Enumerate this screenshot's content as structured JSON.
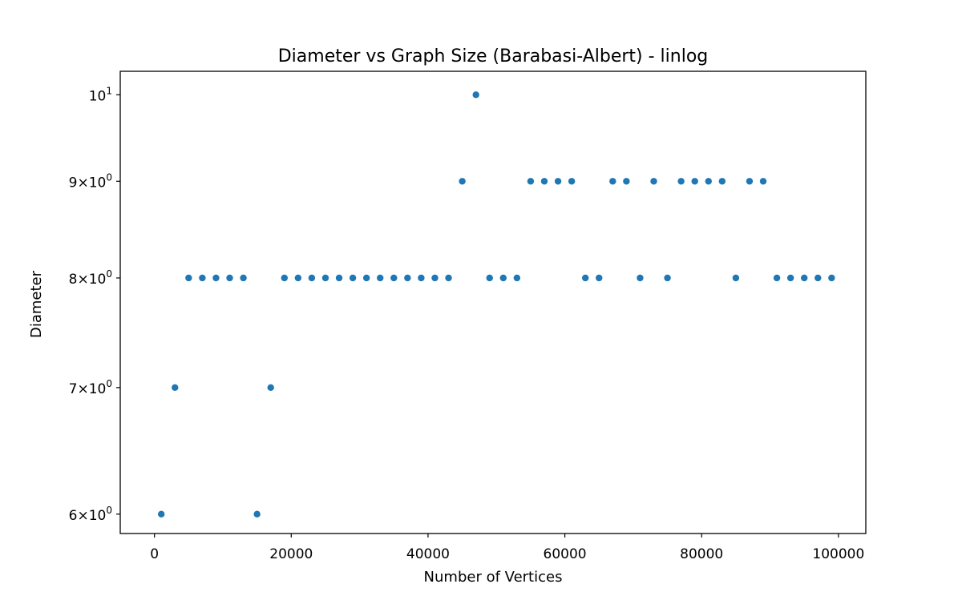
{
  "chart_data": {
    "type": "scatter",
    "title": "Diameter vs Graph Size (Barabasi-Albert) - linlog",
    "xlabel": "Number of Vertices",
    "ylabel": "Diameter",
    "yscale": "log",
    "xlim": [
      -5000,
      104000
    ],
    "ylim": [
      5.86,
      10.29
    ],
    "grid": false,
    "marker_color": "#1f77b4",
    "x_ticks": [
      {
        "value": 0,
        "label": "0"
      },
      {
        "value": 20000,
        "label": "20000"
      },
      {
        "value": 40000,
        "label": "40000"
      },
      {
        "value": 60000,
        "label": "60000"
      },
      {
        "value": 80000,
        "label": "80000"
      },
      {
        "value": 100000,
        "label": "100000"
      }
    ],
    "y_ticks": [
      {
        "value": 6,
        "mantissa": "6",
        "exp": "0"
      },
      {
        "value": 7,
        "mantissa": "7",
        "exp": "0"
      },
      {
        "value": 8,
        "mantissa": "8",
        "exp": "0"
      },
      {
        "value": 9,
        "mantissa": "9",
        "exp": "0"
      },
      {
        "value": 10,
        "mantissa": "",
        "exp": "1"
      }
    ],
    "x": [
      1000,
      3000,
      5000,
      7000,
      9000,
      11000,
      13000,
      15000,
      17000,
      19000,
      21000,
      23000,
      25000,
      27000,
      29000,
      31000,
      33000,
      35000,
      37000,
      39000,
      41000,
      43000,
      45000,
      47000,
      49000,
      51000,
      53000,
      55000,
      57000,
      59000,
      61000,
      63000,
      65000,
      67000,
      69000,
      71000,
      73000,
      75000,
      77000,
      79000,
      81000,
      83000,
      85000,
      87000,
      89000,
      91000,
      93000,
      95000,
      97000,
      99000
    ],
    "y": [
      6,
      7,
      8,
      8,
      8,
      8,
      8,
      6,
      7,
      8,
      8,
      8,
      8,
      8,
      8,
      8,
      8,
      8,
      8,
      8,
      8,
      8,
      9,
      10,
      8,
      8,
      8,
      9,
      9,
      9,
      9,
      8,
      8,
      9,
      9,
      8,
      9,
      8,
      9,
      9,
      9,
      9,
      8,
      9,
      9,
      8,
      8,
      8,
      8,
      8
    ]
  }
}
